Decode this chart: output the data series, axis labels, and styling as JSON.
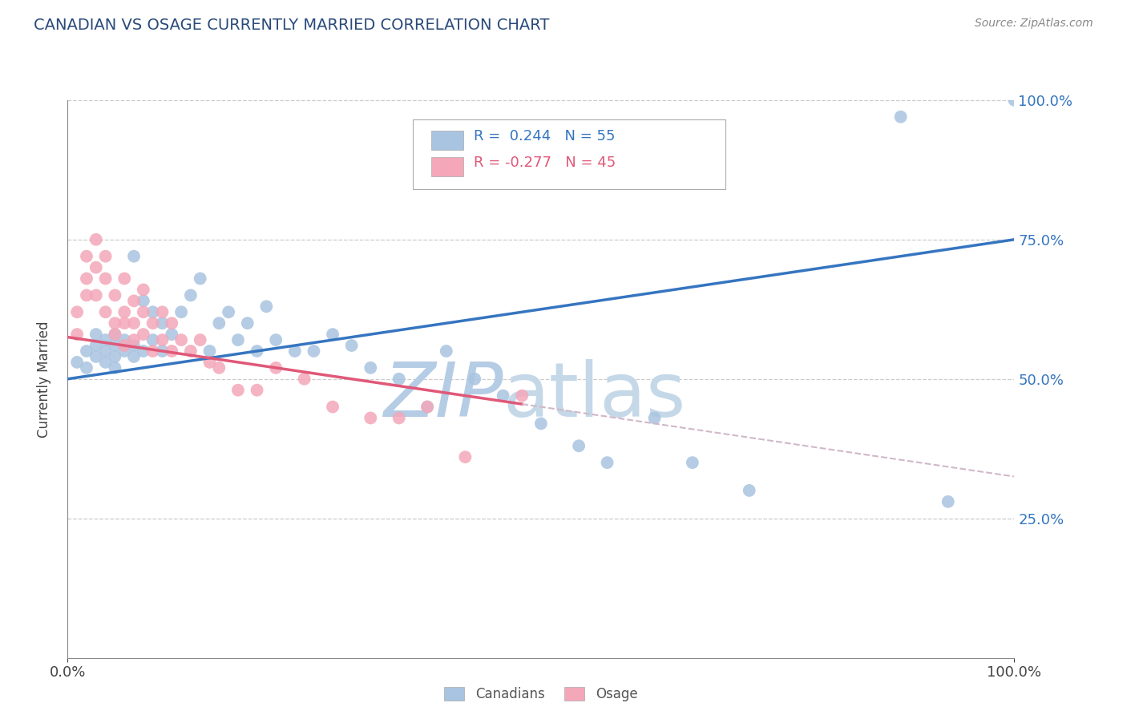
{
  "title": "CANADIAN VS OSAGE CURRENTLY MARRIED CORRELATION CHART",
  "source": "Source: ZipAtlas.com",
  "ylabel": "Currently Married",
  "xlim": [
    0.0,
    1.0
  ],
  "ylim": [
    0.0,
    1.0
  ],
  "ytick_vals": [
    0.25,
    0.5,
    0.75,
    1.0
  ],
  "ytick_labels": [
    "25.0%",
    "50.0%",
    "75.0%",
    "100.0%"
  ],
  "canadians_R": 0.244,
  "canadians_N": 55,
  "osage_R": -0.277,
  "osage_N": 45,
  "canadian_color": "#a8c4e0",
  "osage_color": "#f4a7b9",
  "canadian_line_color": "#3575c0",
  "osage_line_color": "#e05878",
  "canadians_x": [
    0.01,
    0.02,
    0.02,
    0.03,
    0.03,
    0.03,
    0.04,
    0.04,
    0.04,
    0.05,
    0.05,
    0.05,
    0.05,
    0.06,
    0.06,
    0.07,
    0.07,
    0.07,
    0.08,
    0.08,
    0.09,
    0.09,
    0.1,
    0.1,
    0.11,
    0.12,
    0.13,
    0.14,
    0.15,
    0.16,
    0.17,
    0.18,
    0.19,
    0.2,
    0.21,
    0.22,
    0.24,
    0.26,
    0.28,
    0.3,
    0.32,
    0.35,
    0.38,
    0.4,
    0.43,
    0.46,
    0.5,
    0.54,
    0.57,
    0.62,
    0.66,
    0.72,
    0.88,
    0.93,
    1.0
  ],
  "canadians_y": [
    0.53,
    0.55,
    0.52,
    0.54,
    0.56,
    0.58,
    0.55,
    0.53,
    0.57,
    0.54,
    0.56,
    0.52,
    0.58,
    0.55,
    0.57,
    0.54,
    0.56,
    0.72,
    0.55,
    0.64,
    0.57,
    0.62,
    0.55,
    0.6,
    0.58,
    0.62,
    0.65,
    0.68,
    0.55,
    0.6,
    0.62,
    0.57,
    0.6,
    0.55,
    0.63,
    0.57,
    0.55,
    0.55,
    0.58,
    0.56,
    0.52,
    0.5,
    0.45,
    0.55,
    0.5,
    0.47,
    0.42,
    0.38,
    0.35,
    0.43,
    0.35,
    0.3,
    0.97,
    0.28,
    1.0
  ],
  "osage_x": [
    0.01,
    0.01,
    0.02,
    0.02,
    0.02,
    0.03,
    0.03,
    0.03,
    0.04,
    0.04,
    0.04,
    0.05,
    0.05,
    0.05,
    0.06,
    0.06,
    0.06,
    0.06,
    0.07,
    0.07,
    0.07,
    0.08,
    0.08,
    0.08,
    0.09,
    0.09,
    0.1,
    0.1,
    0.11,
    0.11,
    0.12,
    0.13,
    0.14,
    0.15,
    0.16,
    0.18,
    0.2,
    0.22,
    0.25,
    0.28,
    0.32,
    0.35,
    0.38,
    0.42,
    0.48
  ],
  "osage_y": [
    0.58,
    0.62,
    0.72,
    0.65,
    0.68,
    0.75,
    0.7,
    0.65,
    0.68,
    0.62,
    0.72,
    0.6,
    0.65,
    0.58,
    0.62,
    0.56,
    0.68,
    0.6,
    0.57,
    0.64,
    0.6,
    0.58,
    0.62,
    0.66,
    0.55,
    0.6,
    0.57,
    0.62,
    0.55,
    0.6,
    0.57,
    0.55,
    0.57,
    0.53,
    0.52,
    0.48,
    0.48,
    0.52,
    0.5,
    0.45,
    0.43,
    0.43,
    0.45,
    0.36,
    0.47
  ],
  "watermark_zip": "ZIP",
  "watermark_atlas": "atlas",
  "watermark_color_zip": "#b8cfe8",
  "watermark_color_atlas": "#c8d8e8",
  "background_color": "#ffffff",
  "grid_color": "#cccccc",
  "dash_color": "#d0b8c8"
}
